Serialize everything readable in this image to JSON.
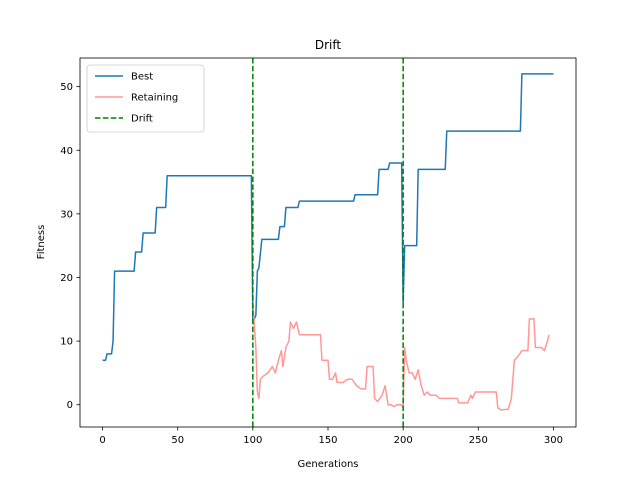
{
  "chart_data": {
    "type": "line",
    "title": "Drift",
    "xlabel": "Generations",
    "ylabel": "Fitness",
    "xlim": [
      -15,
      315
    ],
    "ylim": [
      -3.5,
      54.5
    ],
    "xticks": [
      0,
      50,
      100,
      150,
      200,
      250,
      300
    ],
    "yticks": [
      0,
      10,
      20,
      30,
      40,
      50
    ],
    "grid": false,
    "legend_position": "top-left",
    "series": [
      {
        "name": "Best",
        "color": "#1f77b4",
        "style": "solid",
        "points": [
          [
            0,
            7
          ],
          [
            2,
            7
          ],
          [
            3,
            8
          ],
          [
            6,
            8
          ],
          [
            7,
            10
          ],
          [
            8,
            21
          ],
          [
            21,
            21
          ],
          [
            22,
            24
          ],
          [
            26,
            24
          ],
          [
            27,
            27
          ],
          [
            35,
            27
          ],
          [
            36,
            31
          ],
          [
            42,
            31
          ],
          [
            43,
            36
          ],
          [
            99,
            36
          ],
          [
            100,
            13
          ],
          [
            102,
            14
          ],
          [
            103,
            21
          ],
          [
            104,
            21.5
          ],
          [
            106,
            26
          ],
          [
            117,
            26
          ],
          [
            118,
            28
          ],
          [
            121,
            28
          ],
          [
            122,
            31
          ],
          [
            130,
            31
          ],
          [
            131,
            32
          ],
          [
            167,
            32
          ],
          [
            168,
            33
          ],
          [
            183,
            33
          ],
          [
            184,
            37
          ],
          [
            190,
            37
          ],
          [
            191,
            38
          ],
          [
            199,
            38
          ],
          [
            200,
            16
          ],
          [
            201,
            25
          ],
          [
            209,
            25
          ],
          [
            210,
            37
          ],
          [
            228,
            37
          ],
          [
            229,
            43
          ],
          [
            278,
            43
          ],
          [
            279,
            52
          ],
          [
            300,
            52
          ]
        ]
      },
      {
        "name": "Retaining",
        "color": "#ff9896",
        "style": "solid",
        "points": [
          [
            100,
            16
          ],
          [
            102,
            9
          ],
          [
            103,
            2
          ],
          [
            104,
            1
          ],
          [
            105,
            4
          ],
          [
            107,
            4.5
          ],
          [
            110,
            5
          ],
          [
            113,
            6
          ],
          [
            115,
            5
          ],
          [
            117,
            7
          ],
          [
            119,
            8.5
          ],
          [
            120,
            6
          ],
          [
            122,
            9
          ],
          [
            124,
            10
          ],
          [
            125,
            13
          ],
          [
            127,
            12
          ],
          [
            129,
            13
          ],
          [
            131,
            11
          ],
          [
            145,
            11
          ],
          [
            146,
            7
          ],
          [
            150,
            7
          ],
          [
            151,
            4
          ],
          [
            153,
            4
          ],
          [
            155,
            5
          ],
          [
            156,
            3.5
          ],
          [
            160,
            3.5
          ],
          [
            163,
            4
          ],
          [
            166,
            4
          ],
          [
            169,
            3
          ],
          [
            172,
            2.5
          ],
          [
            175,
            2.5
          ],
          [
            176,
            6
          ],
          [
            180,
            6
          ],
          [
            181,
            1
          ],
          [
            183,
            0.5
          ],
          [
            186,
            1.5
          ],
          [
            188,
            3
          ],
          [
            190,
            0
          ],
          [
            192,
            0
          ],
          [
            194,
            -0.3
          ],
          [
            196,
            0
          ],
          [
            199,
            0
          ],
          [
            200,
            -0.5
          ],
          [
            201,
            9
          ],
          [
            202,
            7
          ],
          [
            204,
            5
          ],
          [
            206,
            5
          ],
          [
            208,
            4
          ],
          [
            210,
            5.5
          ],
          [
            212,
            3
          ],
          [
            214,
            1.5
          ],
          [
            216,
            2
          ],
          [
            218,
            1.5
          ],
          [
            222,
            1.5
          ],
          [
            224,
            1
          ],
          [
            236,
            1
          ],
          [
            237,
            0.3
          ],
          [
            243,
            0.3
          ],
          [
            245,
            1.5
          ],
          [
            246,
            1
          ],
          [
            248,
            2
          ],
          [
            262,
            2
          ],
          [
            263,
            -0.5
          ],
          [
            265,
            -0.8
          ],
          [
            270,
            -0.7
          ],
          [
            272,
            1
          ],
          [
            274,
            7
          ],
          [
            276,
            7.5
          ],
          [
            279,
            8.5
          ],
          [
            283,
            8.5
          ],
          [
            284,
            13.5
          ],
          [
            287,
            13.5
          ],
          [
            288,
            9
          ],
          [
            292,
            9
          ],
          [
            294,
            8.5
          ],
          [
            296,
            10
          ],
          [
            297,
            11
          ]
        ]
      },
      {
        "name": "Drift",
        "color": "#008000",
        "style": "dashed",
        "vlines": [
          100,
          200
        ]
      }
    ]
  }
}
